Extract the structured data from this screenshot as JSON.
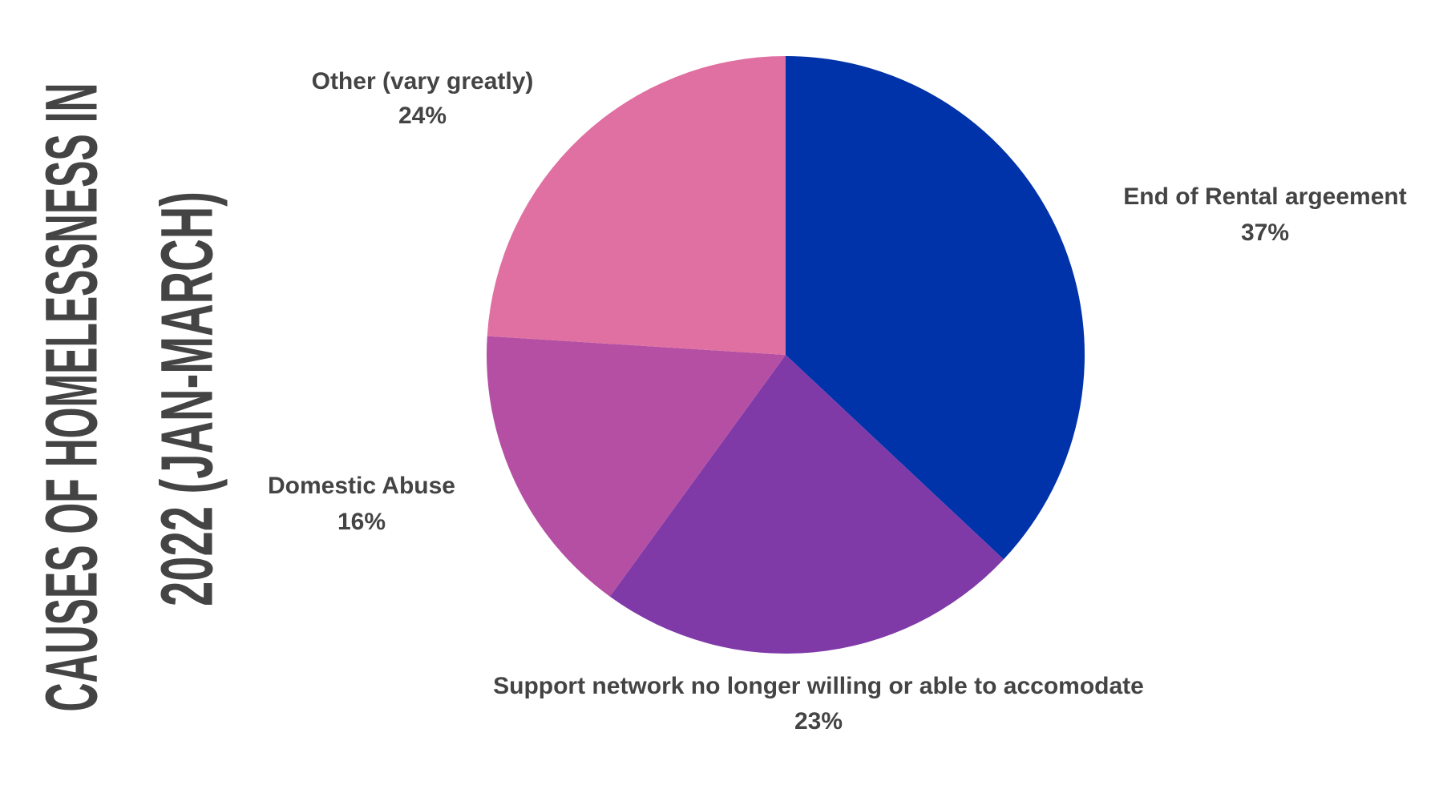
{
  "chart_data": {
    "type": "pie",
    "title": [
      "CAUSES OF HOMELESSNESS IN",
      "2022 (JAN-MARCH)"
    ],
    "categories": [
      "End of Rental argeement",
      "Support network no longer willing or able to accomodate",
      "Domestic Abuse",
      "Other (vary greatly)"
    ],
    "values": [
      37,
      23,
      16,
      24
    ],
    "value_labels": [
      "37%",
      "23%",
      "16%",
      "24%"
    ],
    "colors": [
      "#0033aa",
      "#7f3aa8",
      "#b54fa4",
      "#e070a1"
    ]
  }
}
